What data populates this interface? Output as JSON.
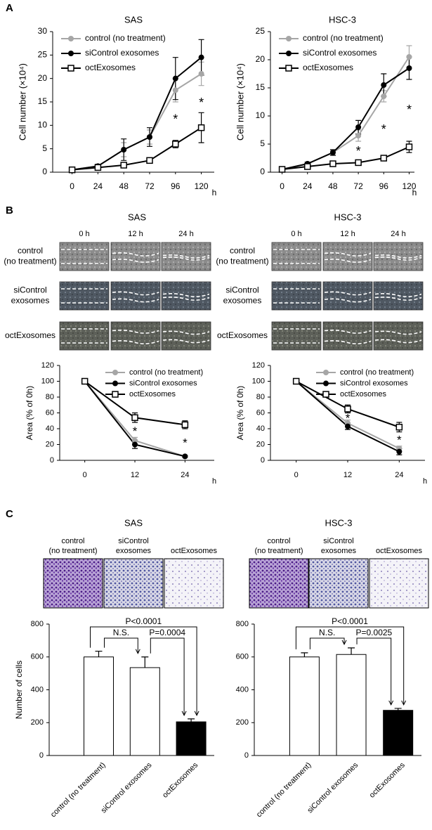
{
  "panel_labels": [
    "A",
    "B",
    "C"
  ],
  "wound_healing": [
    {
      "title": "SAS",
      "columns": [
        "0 h",
        "12 h",
        "24 h"
      ],
      "rows": [
        [
          "control",
          "(no treatment)"
        ],
        [
          "siControl",
          "exosomes"
        ],
        [
          "octExosomes"
        ]
      ]
    },
    {
      "title": "HSC-3",
      "columns": [
        "0 h",
        "12 h",
        "24 h"
      ],
      "rows": [
        [
          "control",
          "(no treatment)"
        ],
        [
          "siControl",
          "exosomes"
        ],
        [
          "octExosomes"
        ]
      ]
    }
  ],
  "invasion": [
    {
      "title": "SAS",
      "columns": [
        [
          "control",
          "(no treatment)"
        ],
        [
          "siControl",
          "exosomes"
        ],
        [
          "octExosomes"
        ]
      ]
    },
    {
      "title": "HSC-3",
      "columns": [
        [
          "control",
          "(no treatment)"
        ],
        [
          "siControl",
          "exosomes"
        ],
        [
          "octExosomes"
        ]
      ]
    }
  ],
  "chart_data": [
    {
      "type": "line",
      "title": "SAS",
      "y_label": "Cell number (×10⁴)",
      "x_label": "h",
      "x": [
        0,
        24,
        48,
        72,
        96,
        120
      ],
      "xlim": [
        -18,
        132
      ],
      "xticks": [
        0,
        24,
        48,
        72,
        96,
        120
      ],
      "ylim": [
        0,
        30
      ],
      "yticks": [
        0,
        5,
        10,
        15,
        20,
        25,
        30
      ],
      "legend": "upper left",
      "series": [
        {
          "name": "control (no treatment)",
          "color": "#a6a6a6",
          "marker": "circle",
          "values": [
            0.5,
            1.3,
            4.8,
            7.5,
            17.5,
            21
          ],
          "errors": [
            0.3,
            0.4,
            1.5,
            1.5,
            2.5,
            2.5
          ]
        },
        {
          "name": "siControl exosomes",
          "color": "#000000",
          "marker": "circle",
          "values": [
            0.5,
            1.3,
            4.8,
            7.5,
            20,
            24.5
          ],
          "errors": [
            0.3,
            0.4,
            2.3,
            2,
            4.5,
            3.8
          ]
        },
        {
          "name": "octExosomes",
          "color": "#000000",
          "marker": "square-open",
          "values": [
            0.5,
            1,
            1.5,
            2.5,
            6,
            9.5
          ],
          "errors": [
            0.2,
            0.3,
            0.4,
            0.5,
            0.8,
            3.2
          ]
        }
      ],
      "annotations": [
        {
          "text": "*",
          "x": 96
        },
        {
          "text": "*",
          "x": 120
        }
      ]
    },
    {
      "type": "line",
      "title": "HSC-3",
      "y_label": "Cell number (×10⁴)",
      "x_label": "h",
      "x": [
        0,
        24,
        48,
        72,
        96,
        120
      ],
      "xlim": [
        -11,
        125
      ],
      "xticks": [
        0,
        24,
        48,
        72,
        96,
        120
      ],
      "ylim": [
        0,
        25
      ],
      "yticks": [
        0,
        5,
        10,
        15,
        20,
        25
      ],
      "legend": "upper left",
      "series": [
        {
          "name": "control (no treatment)",
          "color": "#a6a6a6",
          "marker": "circle",
          "values": [
            0.5,
            1.5,
            3.5,
            6.5,
            13.5,
            20.5
          ],
          "errors": [
            0.2,
            0.3,
            0.5,
            1,
            1,
            2
          ]
        },
        {
          "name": "siControl exosomes",
          "color": "#000000",
          "marker": "circle",
          "values": [
            0.5,
            1.5,
            3.5,
            8,
            15.5,
            18.5
          ],
          "errors": [
            0.2,
            0.3,
            0.5,
            1.2,
            2,
            2
          ]
        },
        {
          "name": "octExosomes",
          "color": "#000000",
          "marker": "square-open",
          "values": [
            0.5,
            1,
            1.5,
            1.7,
            2.5,
            4.5
          ],
          "errors": [
            0.2,
            0.3,
            0.3,
            0.3,
            0.4,
            1
          ]
        }
      ],
      "annotations": [
        {
          "text": "*",
          "x": 72
        },
        {
          "text": "*",
          "x": 96
        },
        {
          "text": "*",
          "x": 120
        }
      ]
    },
    {
      "type": "line",
      "y_label": "Area (% of 0h)",
      "x_label": "h",
      "x": [
        0,
        12,
        24
      ],
      "xlim": [
        -6,
        31
      ],
      "xticks": [
        0,
        12,
        24
      ],
      "ylim": [
        0,
        120
      ],
      "yticks": [
        0,
        20,
        40,
        60,
        80,
        100,
        120
      ],
      "legend": "upper right",
      "series": [
        {
          "name": "control (no treatment)",
          "color": "#a6a6a6",
          "marker": "circle",
          "values": [
            100,
            25,
            5
          ],
          "errors": [
            1,
            4,
            1
          ]
        },
        {
          "name": "siControl exosomes",
          "color": "#000000",
          "marker": "circle",
          "values": [
            100,
            20,
            5
          ],
          "errors": [
            1,
            5,
            1
          ]
        },
        {
          "name": "octExosomes",
          "color": "#000000",
          "marker": "square-open",
          "values": [
            100,
            54,
            45
          ],
          "errors": [
            2,
            6,
            5
          ]
        }
      ],
      "annotations": [
        {
          "text": "*",
          "x": 12
        },
        {
          "text": "*",
          "x": 24
        }
      ]
    },
    {
      "type": "line",
      "y_label": "Area (% of 0h)",
      "x_label": "h",
      "x": [
        0,
        12,
        24
      ],
      "xlim": [
        -6,
        30
      ],
      "xticks": [
        0,
        12,
        24
      ],
      "ylim": [
        0,
        120
      ],
      "yticks": [
        0,
        20,
        40,
        60,
        80,
        100,
        120
      ],
      "legend": "upper right",
      "series": [
        {
          "name": "control (no treatment)",
          "color": "#a6a6a6",
          "marker": "circle",
          "values": [
            100,
            47,
            15
          ],
          "errors": [
            2,
            4,
            3
          ]
        },
        {
          "name": "siControl exosomes",
          "color": "#000000",
          "marker": "circle",
          "values": [
            100,
            43,
            11
          ],
          "errors": [
            2,
            4,
            4
          ]
        },
        {
          "name": "octExosomes",
          "color": "#000000",
          "marker": "square-open",
          "values": [
            100,
            65,
            42
          ],
          "errors": [
            2,
            5,
            6
          ]
        }
      ],
      "annotations": [
        {
          "text": "*",
          "x": 12
        },
        {
          "text": "*",
          "x": 24
        }
      ]
    },
    {
      "type": "bar",
      "y_label": "Number of cells",
      "categories": [
        "control (no treatment)",
        "siControl exosomes",
        "octExosomes"
      ],
      "values": [
        600,
        535,
        205
      ],
      "errors": [
        35,
        65,
        18
      ],
      "colors": [
        "#ffffff",
        "#ffffff",
        "#000000"
      ],
      "ylim": [
        0,
        800
      ],
      "yticks": [
        0,
        200,
        400,
        600,
        800
      ],
      "comparisons": [
        {
          "from": 0,
          "to": 2,
          "label": "P<0.0001"
        },
        {
          "from": 0,
          "to": 1,
          "label": "N.S."
        },
        {
          "from": 1,
          "to": 2,
          "label": "P=0.0004"
        }
      ]
    },
    {
      "type": "bar",
      "categories": [
        "control (no treatment)",
        "siControl exosomes",
        "octExosomes"
      ],
      "values": [
        600,
        615,
        275
      ],
      "errors": [
        25,
        40,
        12
      ],
      "colors": [
        "#ffffff",
        "#ffffff",
        "#000000"
      ],
      "ylim": [
        0,
        800
      ],
      "yticks": [
        0,
        200,
        400,
        600,
        800
      ],
      "comparisons": [
        {
          "from": 0,
          "to": 2,
          "label": "P<0.0001"
        },
        {
          "from": 0,
          "to": 1,
          "label": "N.S."
        },
        {
          "from": 1,
          "to": 2,
          "label": "P=0.0025"
        }
      ]
    }
  ]
}
